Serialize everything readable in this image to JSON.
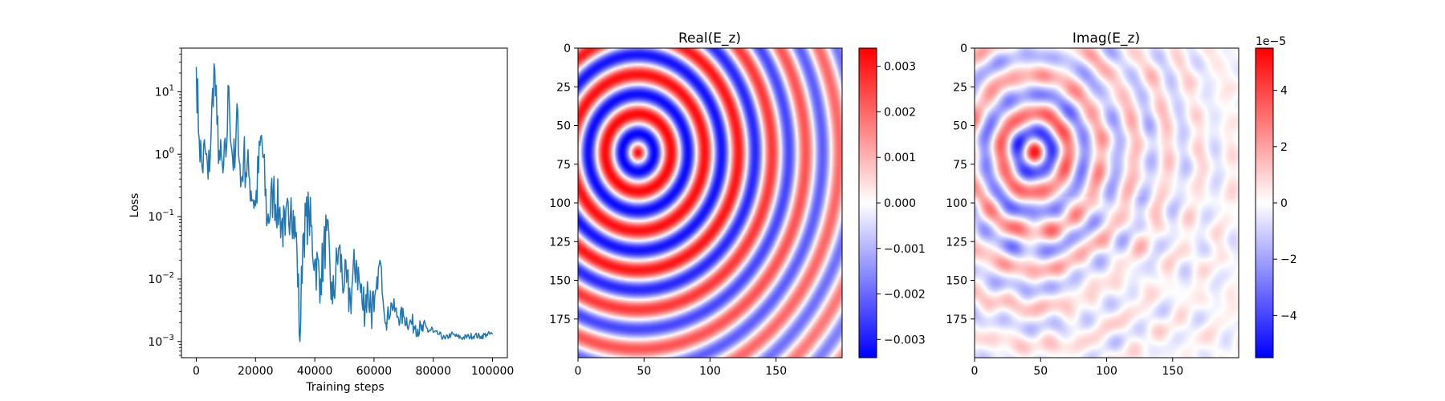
{
  "chart_data": [
    {
      "type": "line",
      "title": "",
      "xlabel": "Training steps",
      "ylabel": "Loss",
      "yscale": "log",
      "xlim": [
        -5000,
        105000
      ],
      "ylim": [
        0.00055,
        50
      ],
      "x_ticks": [
        0,
        20000,
        40000,
        60000,
        80000,
        100000
      ],
      "y_ticks": [
        {
          "value": 0.001,
          "base": "10",
          "exp": "−3"
        },
        {
          "value": 0.01,
          "base": "10",
          "exp": "−2"
        },
        {
          "value": 0.1,
          "base": "10",
          "exp": "−1"
        },
        {
          "value": 1,
          "base": "10",
          "exp": "0"
        },
        {
          "value": 10,
          "base": "10",
          "exp": "1"
        }
      ],
      "color": "#1f77b4",
      "grid": false,
      "series": [
        {
          "x": [
            0,
            1000,
            2000,
            3000,
            4000,
            5000,
            6000,
            7000,
            8000,
            9000,
            10000,
            11000,
            12000,
            13000,
            14000,
            15000,
            16000,
            18000,
            20000,
            22000,
            24000,
            26000,
            28000,
            30000,
            32000,
            34000,
            35000,
            36000,
            38000,
            40000,
            42000,
            44000,
            46000,
            48000,
            50000,
            52000,
            54000,
            56000,
            58000,
            60000,
            62000,
            64000,
            66000,
            68000,
            70000,
            72000,
            74000,
            76000,
            78000,
            80000,
            82000,
            84000,
            86000,
            88000,
            90000,
            92000,
            94000,
            96000,
            98000,
            100000
          ],
          "y": [
            25,
            1.8,
            0.6,
            1.2,
            0.4,
            2.0,
            28,
            3.0,
            0.8,
            0.5,
            0.9,
            12,
            1.2,
            0.6,
            5.0,
            0.3,
            0.9,
            0.4,
            0.15,
            2.0,
            0.08,
            0.25,
            0.12,
            0.05,
            0.2,
            0.03,
            0.001,
            0.05,
            0.12,
            0.02,
            0.01,
            0.06,
            0.004,
            0.03,
            0.008,
            0.005,
            0.02,
            0.004,
            0.006,
            0.003,
            0.02,
            0.002,
            0.004,
            0.0025,
            0.0025,
            0.002,
            0.0018,
            0.0015,
            0.0016,
            0.0014,
            0.0013,
            0.0011,
            0.0013,
            0.0012,
            0.00115,
            0.0012,
            0.00125,
            0.0012,
            0.0013,
            0.0013
          ]
        }
      ]
    },
    {
      "type": "heatmap",
      "title": "Real(E_z)",
      "colormap": "bwr",
      "xlim": [
        0,
        200
      ],
      "ylim": [
        200,
        0
      ],
      "x_ticks": [
        0,
        50,
        100,
        150
      ],
      "y_ticks": [
        0,
        25,
        50,
        75,
        100,
        125,
        150,
        175
      ],
      "source": [
        45,
        67
      ],
      "wavelength": 25.5,
      "colorbar": {
        "range": [
          -0.0034,
          0.0034
        ],
        "ticks": [
          {
            "value": 0.003,
            "label": "0.003"
          },
          {
            "value": 0.002,
            "label": "0.002"
          },
          {
            "value": 0.001,
            "label": "0.001"
          },
          {
            "value": 0,
            "label": "0.000"
          },
          {
            "value": -0.001,
            "label": "−0.001"
          },
          {
            "value": -0.002,
            "label": "−0.002"
          },
          {
            "value": -0.003,
            "label": "−0.003"
          }
        ],
        "offset_label": ""
      }
    },
    {
      "type": "heatmap",
      "title": "Imag(E_z)",
      "colormap": "bwr",
      "xlim": [
        0,
        200
      ],
      "ylim": [
        200,
        0
      ],
      "x_ticks": [
        0,
        50,
        100,
        150
      ],
      "y_ticks": [
        0,
        25,
        50,
        75,
        100,
        125,
        150,
        175
      ],
      "source": [
        45,
        67
      ],
      "colorbar": {
        "range": [
          -5.5,
          5.5
        ],
        "ticks": [
          {
            "value": 4,
            "label": "4"
          },
          {
            "value": 2,
            "label": "2"
          },
          {
            "value": 0,
            "label": "0"
          },
          {
            "value": -2,
            "label": "−2"
          },
          {
            "value": -4,
            "label": "−4"
          }
        ],
        "offset_label": "1e−5"
      }
    }
  ]
}
